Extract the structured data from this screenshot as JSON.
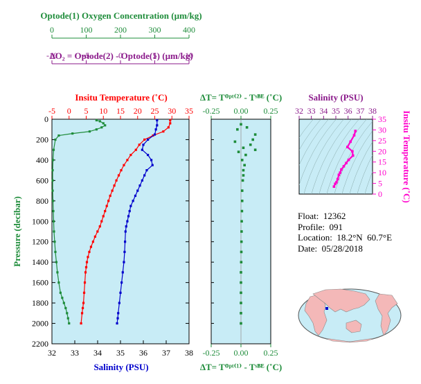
{
  "colors": {
    "oxygen": "#1e8c3a",
    "delta_o2": "#8b1a8b",
    "temperature": "#ff0000",
    "salinity": "#0000cc",
    "ts_curve": "#ff00cc",
    "panel_bg": "#c8ecf6",
    "land": "#f4b8b8",
    "ocean": "#c8ecf6"
  },
  "labels": {
    "oxygen_axis": "Optode(1) Oxygen Concentration (µm/kg)",
    "delta_o2_axis": "ΔO₂ = Optode(2) - Optode(1)    (µm/kg)",
    "temperature_axis": "Insitu Temperature (˚C)",
    "salinity_axis": "Salinity (PSU)",
    "pressure_axis": "Pressure (decibar)",
    "delta_t_top": "ΔT= Tᴼᵖᵗ⁽²⁾ - Tˢᴮᴱ (˚C)",
    "delta_t_bottom": "ΔT= Tᴼᵖᵗ⁽¹⁾ - Tˢᴮᴱ (˚C)",
    "ts_top_axis": "Salinity (PSU)",
    "ts_right_axis": "Insitu Temperature (˚C)"
  },
  "info": {
    "float": "Float:  12362",
    "profile": "Profile:  091",
    "location": "Location:  18.2°N  60.7°E",
    "date": "Date:  05/28/2018"
  },
  "chart_data": [
    {
      "type": "line",
      "panel": "main-profile",
      "y_label": "Pressure (decibar)",
      "y_range": [
        2200,
        0
      ],
      "y_ticks": [
        0,
        200,
        400,
        600,
        800,
        1000,
        1200,
        1400,
        1600,
        1800,
        2000,
        2200
      ],
      "axes": {
        "oxygen": {
          "range": [
            0,
            400
          ],
          "ticks": [
            0,
            100,
            200,
            300,
            400
          ]
        },
        "delta_o2": {
          "range": [
            -10,
            10
          ],
          "ticks": [
            -10,
            -5,
            0,
            5,
            10
          ]
        },
        "temperature": {
          "range": [
            -5,
            35
          ],
          "ticks": [
            -5,
            0,
            5,
            10,
            15,
            20,
            25,
            30,
            35
          ]
        },
        "salinity": {
          "range": [
            32,
            38
          ],
          "ticks": [
            32,
            33,
            34,
            35,
            36,
            37,
            38
          ]
        }
      },
      "series": [
        {
          "name": "Temperature",
          "axis": "temperature",
          "x": [
            29.5,
            29.5,
            29.0,
            27.5,
            24.5,
            22.0,
            20.5,
            19.5,
            18.0,
            17.0,
            16.0,
            15.2,
            14.5,
            13.8,
            13.2,
            12.6,
            12.0,
            11.5,
            11.0,
            10.5,
            10.0,
            9.5,
            9.0,
            8.3,
            7.6,
            7.0,
            6.4,
            5.9,
            5.5,
            5.2,
            5.0,
            4.8,
            4.6,
            4.4,
            4.2,
            4.0,
            3.8,
            3.5
          ],
          "y": [
            10,
            40,
            80,
            120,
            160,
            200,
            250,
            300,
            350,
            400,
            450,
            500,
            550,
            600,
            650,
            700,
            750,
            800,
            850,
            900,
            950,
            1000,
            1050,
            1100,
            1150,
            1200,
            1250,
            1300,
            1350,
            1400,
            1450,
            1500,
            1600,
            1700,
            1800,
            1850,
            1900,
            2000
          ]
        },
        {
          "name": "Salinity",
          "axis": "salinity",
          "x": [
            36.6,
            36.6,
            36.55,
            36.5,
            36.2,
            36.0,
            35.95,
            36.2,
            36.35,
            36.4,
            36.15,
            36.05,
            35.95,
            35.85,
            35.75,
            35.65,
            35.55,
            35.45,
            35.4,
            35.35,
            35.3,
            35.25,
            35.22,
            35.2,
            35.18,
            35.15,
            35.1,
            35.05,
            35.0,
            34.95,
            34.9,
            34.88,
            34.85
          ],
          "y": [
            10,
            60,
            100,
            150,
            200,
            250,
            300,
            350,
            400,
            450,
            500,
            550,
            600,
            650,
            700,
            750,
            800,
            850,
            900,
            950,
            1000,
            1050,
            1100,
            1200,
            1300,
            1400,
            1500,
            1600,
            1700,
            1800,
            1900,
            1950,
            2000
          ]
        },
        {
          "name": "Oxygen",
          "axis": "oxygen",
          "x": [
            130,
            140,
            150,
            155,
            145,
            130,
            110,
            60,
            20,
            10,
            5,
            3,
            2,
            2,
            2,
            3,
            4,
            5,
            6,
            8,
            10,
            13,
            16,
            20,
            25,
            30,
            35,
            40,
            44,
            47,
            50
          ],
          "y": [
            10,
            20,
            40,
            60,
            80,
            100,
            120,
            140,
            160,
            200,
            300,
            400,
            500,
            600,
            700,
            800,
            900,
            1000,
            1100,
            1200,
            1300,
            1400,
            1500,
            1600,
            1700,
            1750,
            1800,
            1850,
            1900,
            1950,
            2000
          ]
        }
      ]
    },
    {
      "type": "scatter",
      "panel": "delta-t",
      "x_range": [
        -0.25,
        0.25
      ],
      "x_ticks": [
        -0.25,
        0.0,
        0.25
      ],
      "y_range": [
        2200,
        0
      ],
      "series": [
        {
          "name": "ΔT",
          "x": [
            0.0,
            0.05,
            -0.03,
            0.12,
            0.1,
            -0.05,
            0.08,
            0.02,
            0.12,
            -0.02,
            0.04,
            0.01,
            0.03,
            0.02,
            0.02,
            0.015,
            0.01,
            0.01,
            0.008,
            0.006,
            0.005,
            0.004,
            0.003,
            0.002,
            0.0,
            0.0,
            0.0,
            0.0,
            0.0,
            0.0
          ],
          "y": [
            50,
            80,
            100,
            150,
            200,
            220,
            250,
            280,
            300,
            320,
            350,
            400,
            450,
            500,
            550,
            600,
            700,
            800,
            900,
            1000,
            1100,
            1200,
            1300,
            1400,
            1500,
            1600,
            1700,
            1800,
            1900,
            2000
          ]
        }
      ]
    },
    {
      "type": "line",
      "panel": "ts-diagram",
      "x_label": "Salinity (PSU)",
      "x_range": [
        32,
        38
      ],
      "x_ticks": [
        32,
        33,
        34,
        35,
        36,
        37,
        38
      ],
      "y_label": "Insitu Temperature (˚C)",
      "y_range": [
        0,
        35
      ],
      "y_ticks": [
        0,
        5,
        10,
        15,
        20,
        25,
        30,
        35
      ],
      "series": [
        {
          "name": "T-S",
          "x": [
            36.6,
            36.5,
            36.2,
            35.95,
            36.35,
            36.4,
            36.05,
            35.85,
            35.65,
            35.45,
            35.35,
            35.25,
            35.15,
            35.05,
            34.95,
            34.85
          ],
          "y": [
            29.5,
            27.5,
            24.5,
            22.0,
            20.0,
            18.0,
            16.0,
            14.5,
            13.0,
            11.5,
            10.0,
            9.0,
            7.0,
            5.5,
            4.8,
            3.5
          ]
        }
      ]
    }
  ]
}
